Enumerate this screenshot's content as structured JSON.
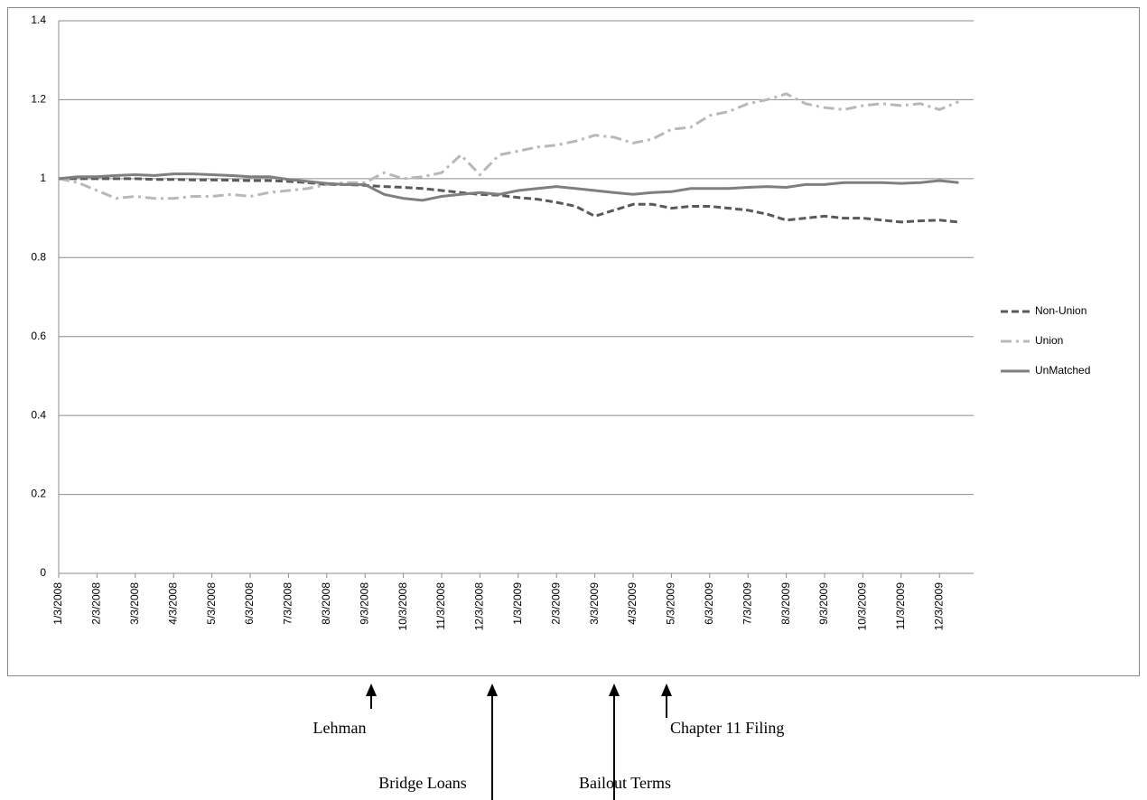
{
  "chart_data": {
    "type": "line",
    "categories": [
      "1/3/2008",
      null,
      "2/3/2008",
      null,
      "3/3/2008",
      null,
      "4/3/2008",
      null,
      "5/3/2008",
      null,
      "6/3/2008",
      null,
      "7/3/2008",
      null,
      "8/3/2008",
      null,
      "9/3/2008",
      null,
      "10/3/2008",
      null,
      "11/3/2008",
      null,
      "12/3/2008",
      null,
      "1/3/2009",
      null,
      "2/3/2009",
      null,
      "3/3/2009",
      null,
      "4/3/2009",
      null,
      "5/3/2009",
      null,
      "6/3/2009",
      null,
      "7/3/2009",
      null,
      "8/3/2009",
      null,
      "9/3/2009",
      null,
      "10/3/2009",
      null,
      "11/3/2009",
      null,
      "12/3/2009",
      null
    ],
    "series": [
      {
        "name": "Non-Union",
        "color": "#595959",
        "dash": "dashed",
        "values": [
          1.0,
          1.0,
          1.0,
          1.0,
          1.0,
          0.998,
          0.998,
          0.997,
          0.997,
          0.996,
          0.995,
          0.995,
          0.993,
          0.99,
          0.985,
          0.985,
          0.983,
          0.98,
          0.978,
          0.975,
          0.97,
          0.965,
          0.96,
          0.958,
          0.952,
          0.948,
          0.94,
          0.93,
          0.905,
          0.92,
          0.935,
          0.935,
          0.925,
          0.93,
          0.93,
          0.925,
          0.92,
          0.91,
          0.895,
          0.9,
          0.905,
          0.9,
          0.9,
          0.895,
          0.89,
          0.893,
          0.895,
          0.89
        ]
      },
      {
        "name": "Union",
        "color": "#b8b8b8",
        "dash": "dash-dot",
        "values": [
          1.0,
          0.99,
          0.97,
          0.95,
          0.955,
          0.95,
          0.95,
          0.955,
          0.955,
          0.96,
          0.955,
          0.965,
          0.97,
          0.975,
          0.985,
          0.99,
          0.99,
          1.015,
          1.0,
          1.005,
          1.015,
          1.06,
          1.01,
          1.06,
          1.07,
          1.08,
          1.085,
          1.095,
          1.11,
          1.105,
          1.09,
          1.1,
          1.125,
          1.13,
          1.16,
          1.17,
          1.19,
          1.2,
          1.215,
          1.19,
          1.18,
          1.175,
          1.185,
          1.19,
          1.185,
          1.19,
          1.175,
          1.195
        ]
      },
      {
        "name": "UnMatched",
        "color": "#7f7f7f",
        "dash": "solid",
        "values": [
          1.0,
          1.005,
          1.005,
          1.008,
          1.01,
          1.008,
          1.012,
          1.012,
          1.01,
          1.008,
          1.005,
          1.005,
          0.998,
          0.993,
          0.988,
          0.985,
          0.985,
          0.96,
          0.95,
          0.945,
          0.955,
          0.96,
          0.965,
          0.96,
          0.97,
          0.975,
          0.98,
          0.975,
          0.97,
          0.965,
          0.96,
          0.965,
          0.967,
          0.975,
          0.975,
          0.975,
          0.978,
          0.98,
          0.978,
          0.985,
          0.985,
          0.99,
          0.99,
          0.99,
          0.988,
          0.99,
          0.995,
          0.99
        ]
      }
    ],
    "ylim": [
      0,
      1.4
    ],
    "yticks": [
      0,
      0.2,
      0.4,
      0.6,
      0.8,
      1,
      1.2,
      1.4
    ],
    "grid": true,
    "legend": "right",
    "annotations": [
      {
        "text": "Lehman"
      },
      {
        "text": "Bridge Loans"
      },
      {
        "text": "Bailout Terms"
      },
      {
        "text": "Chapter 11 Filing"
      }
    ]
  }
}
